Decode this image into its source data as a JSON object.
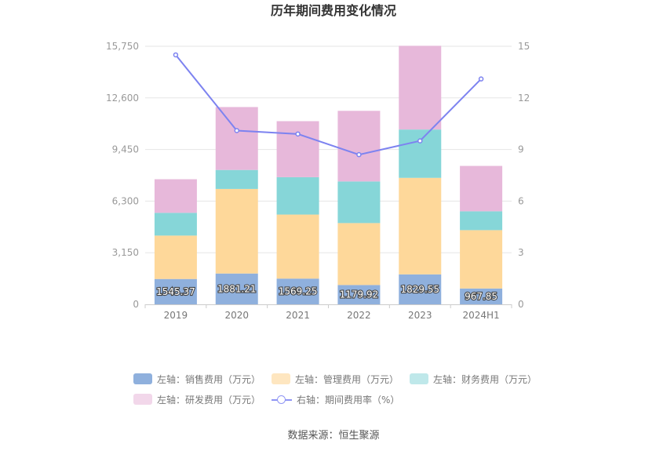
{
  "chart_data": {
    "type": "bar",
    "title": "历年期间费用变化情况",
    "categories": [
      "2019",
      "2020",
      "2021",
      "2022",
      "2023",
      "2024H1"
    ],
    "y_left": {
      "ticks": [
        "0",
        "3,150",
        "6,300",
        "9,450",
        "12,600",
        "15,750"
      ],
      "lim": [
        0,
        15750
      ]
    },
    "y_right": {
      "ticks": [
        "0",
        "3",
        "6",
        "9",
        "12",
        "15"
      ],
      "lim": [
        0,
        15
      ]
    },
    "series": [
      {
        "name": "左轴：销售费用（万元）",
        "axis": "left",
        "kind": "bar",
        "color": "#8fb0dd",
        "values": [
          1545.37,
          1881.21,
          1569.25,
          1179.92,
          1829.55,
          967.85
        ],
        "labels": [
          "1545.37",
          "1881.21",
          "1569.25",
          "1179.92",
          "1829.55",
          "967.85"
        ]
      },
      {
        "name": "左轴：管理费用（万元）",
        "axis": "left",
        "kind": "bar",
        "color": "#fed89a",
        "values": [
          2650,
          5160,
          3910,
          3780,
          5890,
          3560
        ]
      },
      {
        "name": "左轴：财务费用（万元）",
        "axis": "left",
        "kind": "bar",
        "color": "#86d6d8",
        "values": [
          1390,
          1160,
          2280,
          2540,
          2950,
          1150
        ]
      },
      {
        "name": "左轴：研发费用（万元）",
        "axis": "left",
        "kind": "bar",
        "color": "#e7b8da",
        "values": [
          2050,
          3840,
          3420,
          4310,
          5110,
          2770
        ]
      },
      {
        "name": "右轴：期间费用率（%）",
        "axis": "right",
        "kind": "line",
        "color": "#7d83f0",
        "values": [
          14.5,
          10.1,
          9.9,
          8.7,
          9.5,
          13.1
        ]
      }
    ],
    "legend_position": "bottom",
    "grid": true
  },
  "footer": {
    "source": "数据来源：恒生聚源"
  }
}
